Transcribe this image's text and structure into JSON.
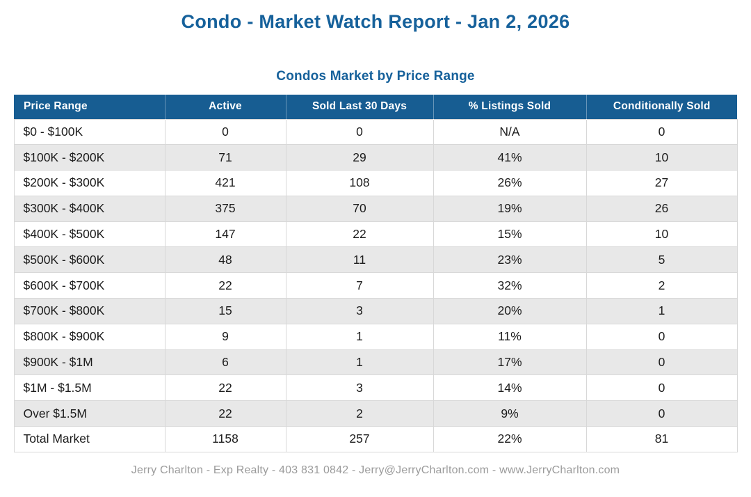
{
  "page": {
    "title": "Condo - Market Watch Report - Jan 2, 2026",
    "footer": "Jerry Charlton - Exp Realty - 403 831 0842 - Jerry@JerryCharlton.com - www.JerryCharlton.com"
  },
  "colors": {
    "title_blue": "#16619b",
    "header_bg": "#175d92",
    "header_text": "#ffffff",
    "row_alt_bg": "#e8e8e8",
    "row_bg": "#ffffff",
    "border": "#d8d8d8",
    "body_text": "#1c1c1c",
    "footer_text": "#9b9b9b"
  },
  "chart_data": {
    "type": "table",
    "title": "Condos Market by Price Range",
    "columns": [
      "Price Range",
      "Active",
      "Sold Last 30 Days",
      "% Listings Sold",
      "Conditionally Sold"
    ],
    "rows": [
      [
        "$0 - $100K",
        "0",
        "0",
        "N/A",
        "0"
      ],
      [
        "$100K - $200K",
        "71",
        "29",
        "41%",
        "10"
      ],
      [
        "$200K - $300K",
        "421",
        "108",
        "26%",
        "27"
      ],
      [
        "$300K - $400K",
        "375",
        "70",
        "19%",
        "26"
      ],
      [
        "$400K - $500K",
        "147",
        "22",
        "15%",
        "10"
      ],
      [
        "$500K - $600K",
        "48",
        "11",
        "23%",
        "5"
      ],
      [
        "$600K - $700K",
        "22",
        "7",
        "32%",
        "2"
      ],
      [
        "$700K - $800K",
        "15",
        "3",
        "20%",
        "1"
      ],
      [
        "$800K - $900K",
        "9",
        "1",
        "11%",
        "0"
      ],
      [
        "$900K - $1M",
        "6",
        "1",
        "17%",
        "0"
      ],
      [
        "$1M - $1.5M",
        "22",
        "3",
        "14%",
        "0"
      ],
      [
        "Over $1.5M",
        "22",
        "2",
        "9%",
        "0"
      ],
      [
        "Total Market",
        "1158",
        "257",
        "22%",
        "81"
      ]
    ]
  }
}
